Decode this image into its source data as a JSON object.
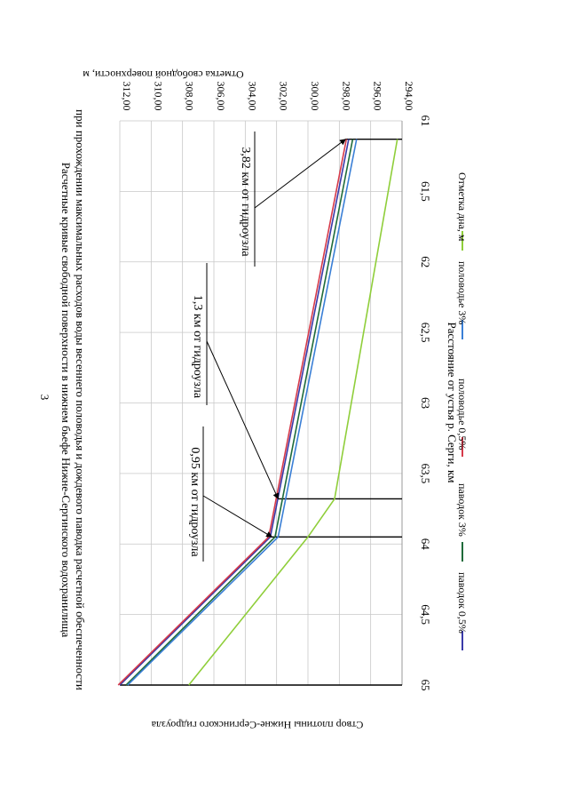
{
  "page_number": "3",
  "chart_data": {
    "type": "line",
    "title_line1": "Расчетные кривые свободной поверхности в нижнем бьефе Нижне-Сергинского водохранилища",
    "title_line2": "при прохождении максимальных расходов воды весеннего половодья и дождевого паводка расчетной обеспеченности",
    "xlabel": "Расстояние от устья р. Серги, км",
    "ylabel": "Отметка свободной  поверхности, м",
    "dam_label": "Створ плотины Нижне-Сергинского гидроузла",
    "x_reversed": true,
    "xlim": [
      65,
      61
    ],
    "ylim": [
      294,
      312
    ],
    "x_ticks": [
      65,
      64.5,
      64,
      63.5,
      63,
      62.5,
      62,
      61.5,
      61
    ],
    "x_tick_labels": [
      "65",
      "64,5",
      "64",
      "63,5",
      "63",
      "62,5",
      "62",
      "61,5",
      "61"
    ],
    "y_ticks": [
      294,
      296,
      298,
      300,
      302,
      304,
      306,
      308,
      310,
      312
    ],
    "y_tick_labels": [
      "294,00",
      "296,00",
      "298,00",
      "300,00",
      "302,00",
      "304,00",
      "306,00",
      "308,00",
      "310,00",
      "312,00"
    ],
    "vertical_lines": [
      {
        "x": 65,
        "y_top": 312
      },
      {
        "x": 63.95,
        "y_top": 302.6
      },
      {
        "x": 63.68,
        "y_top": 301.9
      },
      {
        "x": 61.13,
        "y_top": 297.6
      }
    ],
    "series": [
      {
        "name": "паводок 0,5%",
        "color": "#3a3aa8",
        "x": [
          65,
          63.95,
          61.13
        ],
        "y": [
          312.0,
          302.4,
          297.4
        ]
      },
      {
        "name": "паводок 3%",
        "color": "#1f6b3a",
        "x": [
          65,
          63.95,
          61.13
        ],
        "y": [
          311.6,
          302.1,
          297.15
        ]
      },
      {
        "name": "половодье 0,5%",
        "color": "#d63a4a",
        "x": [
          65,
          63.95,
          61.13
        ],
        "y": [
          312.1,
          302.5,
          297.55
        ]
      },
      {
        "name": "половодье 3%",
        "color": "#3a7fd6",
        "x": [
          65,
          63.95,
          61.13
        ],
        "y": [
          311.5,
          301.9,
          296.9
        ]
      },
      {
        "name": "Отметка дна, м",
        "color": "#8fce3a",
        "x": [
          65,
          63.95,
          63.68,
          61.13
        ],
        "y": [
          307.6,
          300.0,
          298.3,
          294.3
        ]
      }
    ],
    "annotations": [
      {
        "text": "0,95 км от гидроузла",
        "target": {
          "x": 63.95,
          "y": 302.3
        }
      },
      {
        "text": "1,3 км от гидроузла",
        "target": {
          "x": 63.68,
          "y": 301.9
        }
      },
      {
        "text": "3,82 км от гидроузла",
        "target": {
          "x": 61.13,
          "y": 297.6
        }
      }
    ]
  }
}
